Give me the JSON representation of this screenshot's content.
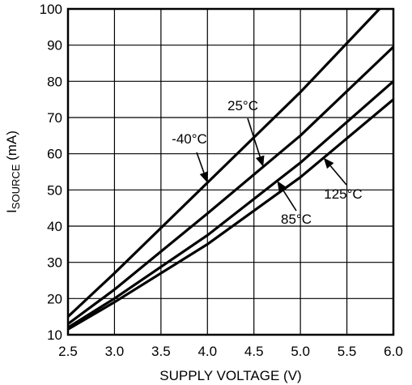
{
  "chart_data": {
    "type": "line",
    "title": "",
    "xlabel": "SUPPLY VOLTAGE (V)",
    "ylabel_main": "I",
    "ylabel_sub": "SOURCE",
    "ylabel_suffix": " (mA)",
    "xlim": [
      2.5,
      6.0
    ],
    "ylim": [
      10,
      100
    ],
    "x_ticks": [
      "2.5",
      "3.0",
      "3.5",
      "4.0",
      "4.5",
      "5.0",
      "5.5",
      "6.0"
    ],
    "y_ticks": [
      "10",
      "20",
      "30",
      "40",
      "50",
      "60",
      "70",
      "80",
      "90",
      "100"
    ],
    "grid": true,
    "legend": "none",
    "series": [
      {
        "name": "-40°C",
        "x": [
          2.5,
          3.0,
          4.0,
          5.0,
          5.85
        ],
        "y": [
          15,
          27,
          52,
          77,
          100
        ]
      },
      {
        "name": "25°C",
        "x": [
          2.5,
          3.0,
          4.0,
          5.0,
          6.0
        ],
        "y": [
          13,
          22.5,
          43.5,
          65,
          89.5
        ]
      },
      {
        "name": "85°C",
        "x": [
          2.5,
          3.0,
          4.0,
          5.0,
          6.0
        ],
        "y": [
          12,
          20,
          37.5,
          57.5,
          80
        ]
      },
      {
        "name": "125°C",
        "x": [
          2.5,
          3.0,
          4.0,
          5.0,
          6.0
        ],
        "y": [
          11.5,
          19,
          35,
          53.5,
          75
        ]
      }
    ],
    "annotations": [
      {
        "text": "-40°C",
        "series": 0,
        "at_x": 4.0
      },
      {
        "text": "25°C",
        "series": 1,
        "at_x": 4.6
      },
      {
        "text": "85°C",
        "series": 2,
        "at_x": 4.75
      },
      {
        "text": "125°C",
        "series": 3,
        "at_x": 5.25
      }
    ]
  }
}
